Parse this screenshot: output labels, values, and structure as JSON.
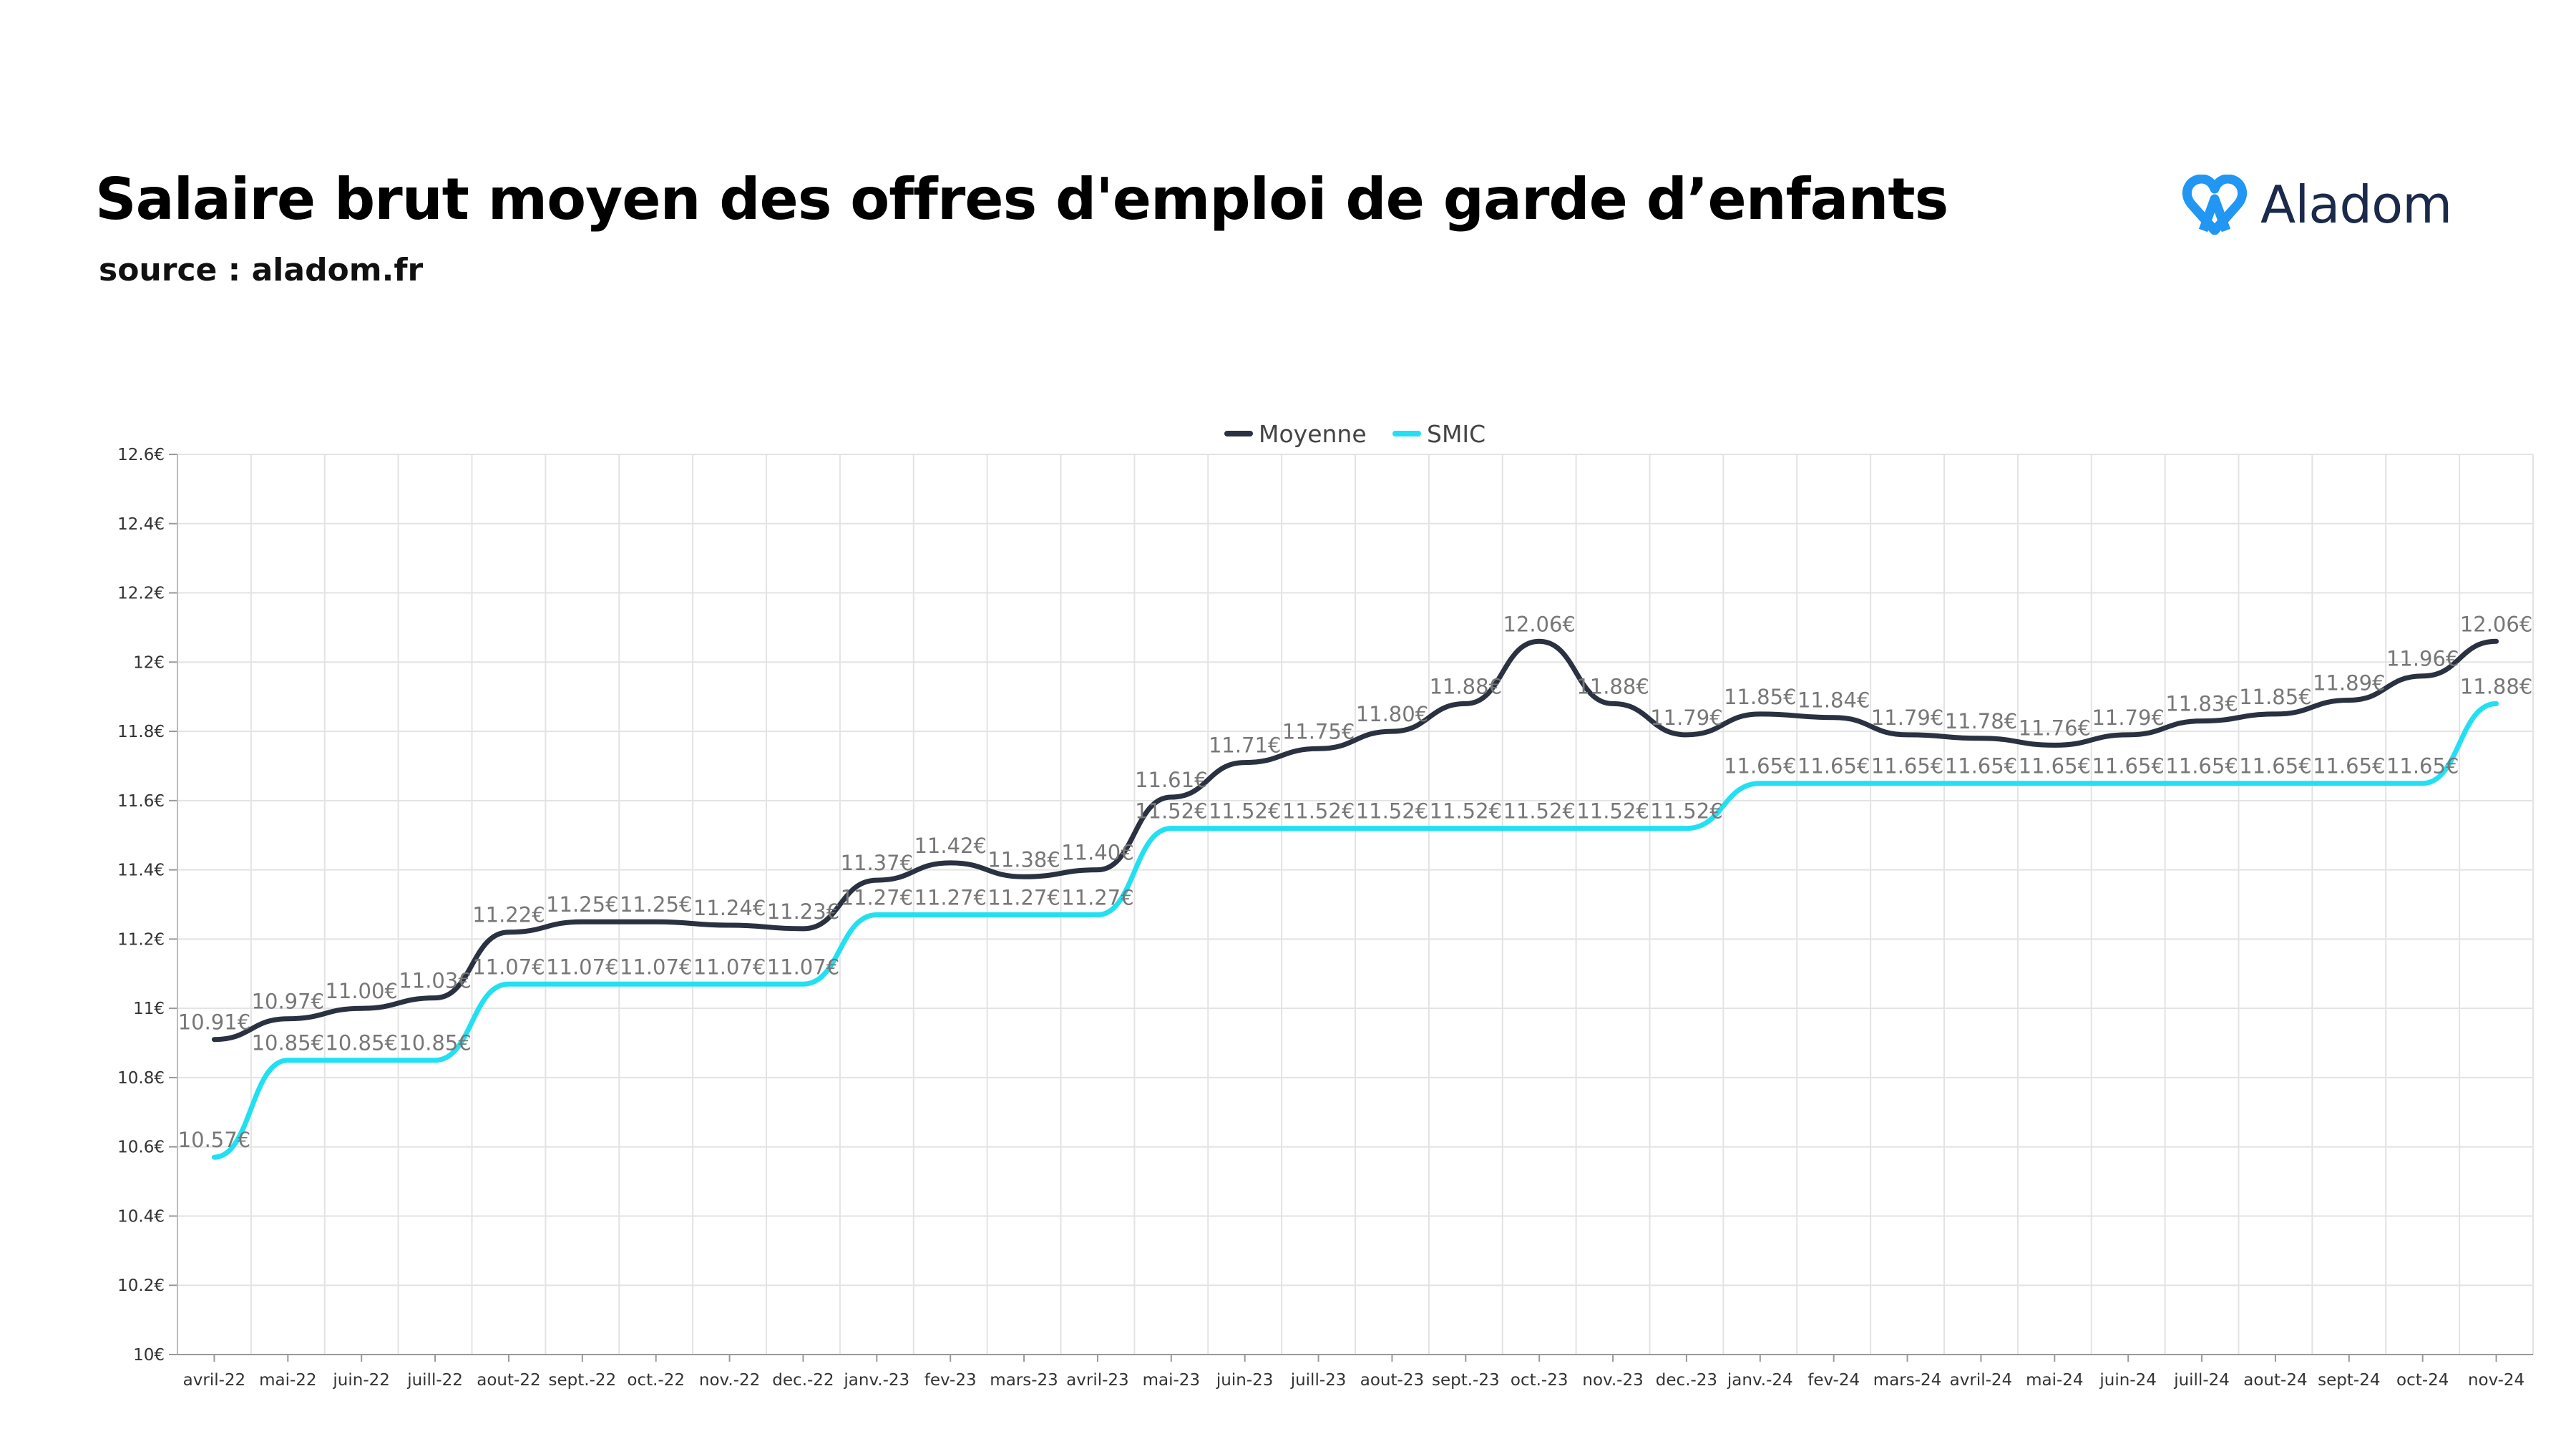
{
  "header": {
    "title": "Salaire brut moyen des offres d'emploi de garde d’enfants",
    "source": "source : aladom.fr",
    "brand": "Aladom"
  },
  "colors": {
    "moyenne": "#2a3140",
    "smic": "#22e0f2",
    "brand_icon": "#2196f3"
  },
  "chart_data": {
    "type": "line",
    "x": [
      "avril-22",
      "mai-22",
      "juin-22",
      "juill-22",
      "aout-22",
      "sept.-22",
      "oct.-22",
      "nov.-22",
      "dec.-22",
      "janv.-23",
      "fev-23",
      "mars-23",
      "avril-23",
      "mai-23",
      "juin-23",
      "juill-23",
      "aout-23",
      "sept.-23",
      "oct.-23",
      "nov.-23",
      "dec.-23",
      "janv.-24",
      "fev-24",
      "mars-24",
      "avril-24",
      "mai-24",
      "juin-24",
      "juill-24",
      "aout-24",
      "sept-24",
      "oct-24",
      "nov-24"
    ],
    "series": [
      {
        "name": "Moyenne",
        "values": [
          10.91,
          10.97,
          11.0,
          11.03,
          11.22,
          11.25,
          11.25,
          11.24,
          11.23,
          11.37,
          11.42,
          11.38,
          11.4,
          11.61,
          11.71,
          11.75,
          11.8,
          11.88,
          12.06,
          11.88,
          11.79,
          11.85,
          11.84,
          11.79,
          11.78,
          11.76,
          11.79,
          11.83,
          11.85,
          11.89,
          11.96,
          12.06
        ],
        "labels": [
          "10.91€",
          "10.97€",
          "11.00€",
          "11.03€",
          "11.22€",
          "11.25€",
          "11.25€",
          "11.24€",
          "11.23€",
          "11.37€",
          "11.42€",
          "11.38€",
          "11.40€",
          "11.61€",
          "11.71€",
          "11.75€",
          "11.80€",
          "11.88€",
          "12.06€",
          "11.88€",
          "11.79€",
          "11.85€",
          "11.84€",
          "11.79€",
          "11.78€",
          "11.76€",
          "11.79€",
          "11.83€",
          "11.85€",
          "11.89€",
          "11.96€",
          "12.06€"
        ]
      },
      {
        "name": "SMIC",
        "values": [
          10.57,
          10.85,
          10.85,
          10.85,
          11.07,
          11.07,
          11.07,
          11.07,
          11.07,
          11.27,
          11.27,
          11.27,
          11.27,
          11.52,
          11.52,
          11.52,
          11.52,
          11.52,
          11.52,
          11.52,
          11.52,
          11.65,
          11.65,
          11.65,
          11.65,
          11.65,
          11.65,
          11.65,
          11.65,
          11.65,
          11.65,
          11.88
        ],
        "labels": [
          "10.57€",
          "10.85€",
          "10.85€",
          "10.85€",
          "11.07€",
          "11.07€",
          "11.07€",
          "11.07€",
          "11.07€",
          "11.27€",
          "11.27€",
          "11.27€",
          "11.27€",
          "11.52€",
          "11.52€",
          "11.52€",
          "11.52€",
          "11.52€",
          "11.52€",
          "11.52€",
          "11.52€",
          "11.65€",
          "11.65€",
          "11.65€",
          "11.65€",
          "11.65€",
          "11.65€",
          "11.65€",
          "11.65€",
          "11.65€",
          "11.65€",
          "11.88€"
        ]
      }
    ],
    "ylim": [
      10,
      12.6
    ],
    "yticks": [
      "10€",
      "10.2€",
      "10.4€",
      "10.6€",
      "10.8€",
      "11€",
      "11.2€",
      "11.4€",
      "11.6€",
      "11.8€",
      "12€",
      "12.2€",
      "12.4€",
      "12.6€"
    ],
    "grid": true,
    "legend": "top-center"
  }
}
